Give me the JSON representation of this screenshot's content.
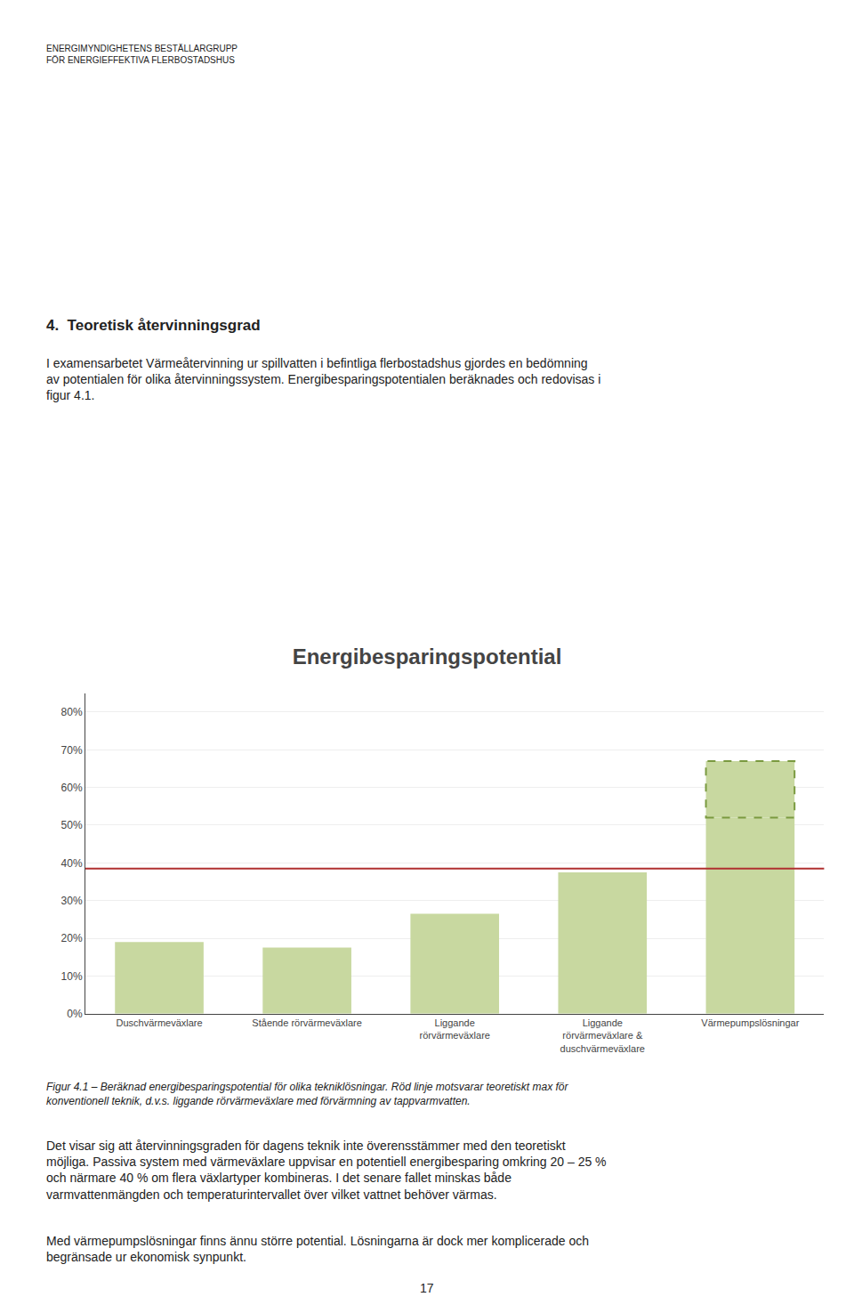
{
  "chart_data": {
    "type": "bar",
    "title": "Energibesparingspotential",
    "categories": [
      "Duschvärmeväxlare",
      "Stående rörvärmeväxlare",
      "Liggande\nrörvärmeväxlare",
      "Liggande\nrörvärmeväxlare &\nduschvärmeväxlare",
      "Värmepumpslösningar"
    ],
    "values": [
      0.19,
      0.175,
      0.265,
      0.375,
      0.52
    ],
    "color": "#c8d8a0",
    "extension": {
      "top": 0.67,
      "color": "#7a9a40",
      "line_style": "dashed"
    },
    "reference_line": {
      "value": 0.385,
      "color": "#b03030"
    },
    "ylim": [
      0,
      0.85
    ],
    "yticks": [
      {
        "value": 0.0,
        "label": "0%"
      },
      {
        "value": 0.1,
        "label": "10%"
      },
      {
        "value": 0.2,
        "label": "20%"
      },
      {
        "value": 0.3,
        "label": "30%"
      },
      {
        "value": 0.4,
        "label": "40%"
      },
      {
        "value": 0.5,
        "label": "50%"
      },
      {
        "value": 0.6,
        "label": "60%"
      },
      {
        "value": 0.7,
        "label": "70%"
      },
      {
        "value": 0.8,
        "label": "80%"
      }
    ],
    "grid": true,
    "annotations": [
      "ENERGIMYNDIGHETENS BESTÄLLARGRUPP\nFÖR ENERGIEFFEKTIVA FLERBOSTADSHUS",
      "4.  Teoretisk återvinningsgrad",
      "I examensarbetet Värmeåtervinning ur spillvatten i befintliga flerbostadshus gjordes en bedömning\nav potentialen för olika återvinningssystem. Energibesparingspotentialen beräknades och redovisas i\nfigur 4.1.",
      "Figur 4.1 – Beräknad energibesparingspotential för olika tekniklösningar. Röd linje motsvarar teoretiskt max för\nkonventionell teknik, d.v.s. liggande rörvärmeväxlare med förvärmning av tappvarmvatten.",
      "Det visar sig att återvinningsgraden för dagens teknik inte överensstämmer med den teoretiskt\nmöjliga. Passiva system med värmeväxlare uppvisar en potentiell energibesparing omkring 20 – 25 %\noch närmare 40 % om flera växlartyper kombineras. I det senare fallet minskas både\nvarmvattenmängden och temperaturintervallet över vilket vattnet behöver värmas.",
      "Med värmepumpslösningar finns ännu större potential. Lösningarna är dock mer komplicerade och\nbegränsade ur ekonomisk synpunkt.",
      "17"
    ]
  }
}
